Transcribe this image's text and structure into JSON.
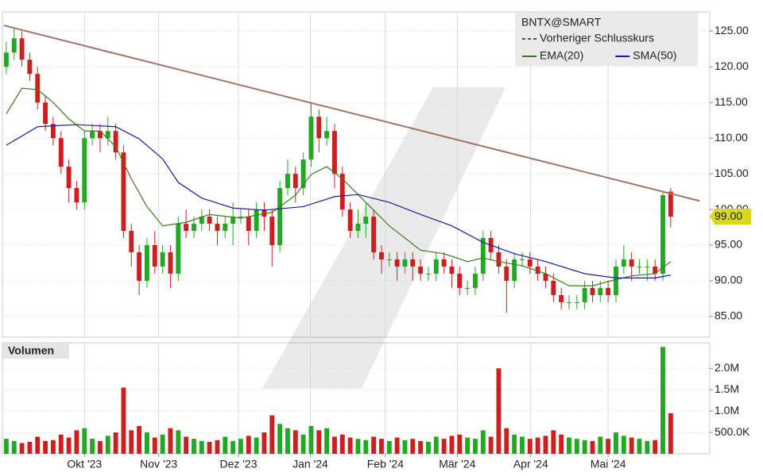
{
  "chart_data": {
    "type": "candlestick",
    "title": "BNTX@SMART",
    "volume_title": "Volumen",
    "up_color": "#22a822",
    "down_color": "#cc1f1f",
    "open": [
      120,
      122,
      124,
      121,
      119,
      115,
      112,
      110,
      106,
      103,
      101,
      110,
      111,
      110,
      111,
      108,
      97,
      94,
      90,
      95,
      92,
      94,
      91,
      98,
      97,
      98,
      99,
      98,
      97,
      98,
      99,
      99,
      97,
      100,
      99,
      95,
      103,
      105,
      103,
      107,
      113,
      110,
      111,
      105,
      100,
      97,
      98,
      99,
      94,
      93,
      93,
      92,
      93,
      92,
      91,
      91,
      93,
      92,
      91,
      89,
      89,
      91,
      96,
      94,
      92,
      90,
      93,
      93,
      92,
      91,
      90,
      88,
      87,
      87,
      87,
      89,
      88,
      89,
      88,
      92,
      93,
      92,
      92,
      92,
      91,
      102.5
    ],
    "high": [
      123.5,
      125.5,
      125,
      122,
      120,
      116,
      113,
      111,
      107,
      104,
      111,
      112,
      112,
      113,
      112,
      109,
      98,
      95,
      96,
      97,
      95,
      95,
      99,
      100,
      99,
      100,
      100,
      99,
      99,
      101,
      100,
      100,
      101,
      101,
      100,
      104,
      107,
      106,
      108,
      115,
      114,
      113,
      112,
      106,
      101,
      100,
      101,
      100,
      95,
      94,
      94,
      94,
      94,
      93,
      92,
      94,
      94,
      93,
      92,
      90,
      92,
      97,
      97,
      95,
      93,
      94,
      94,
      94,
      93,
      92,
      91,
      89,
      88,
      88,
      90,
      90,
      90,
      90,
      93,
      95,
      94,
      93,
      93,
      93,
      102.5,
      103
    ],
    "low": [
      119,
      121,
      120,
      118,
      114,
      111,
      109,
      105,
      101,
      100,
      100,
      109,
      108,
      109,
      107,
      96,
      92,
      88,
      89,
      91,
      91,
      89,
      90,
      96,
      96,
      97,
      97,
      95,
      96,
      95,
      98,
      95,
      96,
      97,
      92,
      94,
      102,
      101,
      102,
      106,
      108,
      109,
      103,
      99,
      96,
      96,
      96,
      93,
      91,
      92,
      90,
      91,
      90,
      90,
      90,
      90,
      91,
      89,
      88,
      88,
      88,
      90,
      93,
      91,
      85.5,
      89,
      92,
      91,
      90,
      89,
      87,
      86,
      86,
      86,
      86,
      87,
      87,
      87,
      87,
      91,
      90,
      91,
      90,
      90,
      90,
      97.5
    ],
    "close": [
      122,
      124,
      121,
      119,
      115,
      112,
      110,
      106,
      103,
      101,
      110,
      111,
      110,
      111,
      108,
      97,
      94,
      90,
      95,
      92,
      94,
      91,
      98,
      97,
      98,
      99,
      98,
      97,
      98,
      99,
      99,
      97,
      100,
      99,
      95,
      103,
      105,
      103,
      107,
      113,
      110,
      111,
      105,
      100,
      97,
      98,
      99,
      94,
      93,
      93,
      92,
      93,
      92,
      91,
      91,
      93,
      92,
      91,
      89,
      89,
      91,
      96,
      94,
      92,
      90,
      93,
      93,
      92,
      91,
      90,
      88,
      87,
      87,
      87,
      89,
      88,
      89,
      88,
      92,
      93,
      92,
      92,
      92,
      91,
      102,
      99
    ],
    "volume": [
      350000,
      300000,
      250000,
      280000,
      400000,
      300000,
      320000,
      450000,
      380000,
      550000,
      600000,
      350000,
      300000,
      420000,
      500000,
      1550000,
      550000,
      650000,
      500000,
      380000,
      450000,
      600000,
      550000,
      400000,
      350000,
      300000,
      280000,
      320000,
      400000,
      300000,
      350000,
      420000,
      380000,
      500000,
      900000,
      700000,
      600000,
      550000,
      450000,
      650000,
      550000,
      600000,
      400000,
      450000,
      380000,
      350000,
      320000,
      400000,
      350000,
      300000,
      380000,
      320000,
      350000,
      300000,
      280000,
      400000,
      350000,
      420000,
      450000,
      380000,
      350000,
      550000,
      400000,
      2000000,
      600000,
      450000,
      400000,
      350000,
      380000,
      420000,
      550000,
      450000,
      380000,
      350000,
      320000,
      300000,
      400000,
      350000,
      500000,
      420000,
      380000,
      350000,
      300000,
      320000,
      2500000,
      950000
    ],
    "series": [
      {
        "name": "EMA(20)",
        "color": "#3d7a1f",
        "x": [
          0,
          2,
          4,
          6,
          8,
          10,
          12,
          14,
          16,
          18,
          20,
          23,
          26,
          30,
          34,
          37,
          39,
          41,
          43,
          45,
          47,
          49,
          51,
          53,
          56,
          59,
          61,
          63,
          66,
          69,
          72,
          75,
          77,
          80,
          83,
          85
        ],
        "values": [
          113.4,
          117,
          116.8,
          115,
          112.7,
          111,
          111,
          108.8,
          104.3,
          100.4,
          97.7,
          98.2,
          99.3,
          98.8,
          99.6,
          102,
          104.9,
          106,
          104.3,
          102.1,
          99.9,
          97.7,
          96,
          94.3,
          93.8,
          92.7,
          93.2,
          92.7,
          92.1,
          91,
          89.3,
          89.3,
          89.9,
          90.7,
          91,
          92.7
        ]
      },
      {
        "name": "SMA(50)",
        "color": "#1a1aa6",
        "x": [
          0,
          4,
          9,
          14,
          17,
          20,
          22,
          25,
          29,
          33,
          38,
          42,
          45,
          49,
          53,
          57,
          61,
          65,
          69,
          74,
          78,
          83,
          85
        ],
        "values": [
          109,
          111.6,
          111.9,
          111.6,
          109.9,
          107.1,
          103.8,
          101.6,
          100.2,
          99.9,
          100.4,
          101.8,
          102.1,
          101,
          99.3,
          97.7,
          95.4,
          93.8,
          92.7,
          91,
          90.4,
          90.4,
          90.8
        ]
      }
    ],
    "reference_line": {
      "name": "Vorheriger Schlusskurs",
      "color": "#555555"
    },
    "trendline": {
      "x": [
        -0.3,
        88.7
      ],
      "values": [
        125.8,
        101.2
      ],
      "color": "#d9735a"
    },
    "last_price": {
      "value": 99,
      "label": "99.00"
    },
    "xlim": [
      -0.5,
      90
    ],
    "xticks": [
      {
        "value": 10,
        "label": "Okt '23"
      },
      {
        "value": 19.5,
        "label": "Nov '23"
      },
      {
        "value": 29.7,
        "label": "Dez '23"
      },
      {
        "value": 38.9,
        "label": "Jan '24"
      },
      {
        "value": 48.5,
        "label": "Feb '24"
      },
      {
        "value": 57.7,
        "label": "Mär '24"
      },
      {
        "value": 67.1,
        "label": "Apr '24"
      },
      {
        "value": 77,
        "label": "Mai '24"
      }
    ],
    "ylim": [
      82.1,
      127.7
    ],
    "yticks": [
      {
        "value": 85,
        "label": "85.00"
      },
      {
        "value": 90,
        "label": "90.00"
      },
      {
        "value": 95,
        "label": "95.00"
      },
      {
        "value": 100,
        "label": "100.00"
      },
      {
        "value": 105,
        "label": "105.00"
      },
      {
        "value": 110,
        "label": "110.00"
      },
      {
        "value": 115,
        "label": "115.00"
      },
      {
        "value": 120,
        "label": "120.00"
      },
      {
        "value": 125,
        "label": "125.00"
      }
    ],
    "volume_ylim": [
      0,
      2600000
    ],
    "volume_yticks": [
      {
        "value": 500000,
        "label": "500.0K"
      },
      {
        "value": 1000000,
        "label": "1.0M"
      },
      {
        "value": 1500000,
        "label": "1.5M"
      },
      {
        "value": 2000000,
        "label": "2.0M"
      }
    ],
    "grid": true
  }
}
